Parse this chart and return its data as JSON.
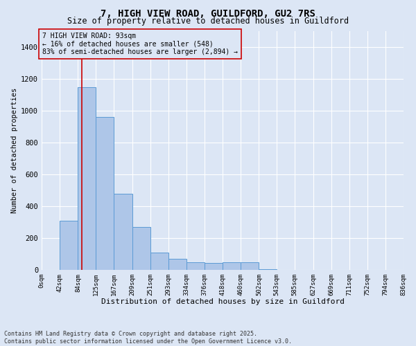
{
  "title_line1": "7, HIGH VIEW ROAD, GUILDFORD, GU2 7RS",
  "title_line2": "Size of property relative to detached houses in Guildford",
  "xlabel": "Distribution of detached houses by size in Guildford",
  "ylabel": "Number of detached properties",
  "footer_line1": "Contains HM Land Registry data © Crown copyright and database right 2025.",
  "footer_line2": "Contains public sector information licensed under the Open Government Licence v3.0.",
  "annotation_line1": "7 HIGH VIEW ROAD: 93sqm",
  "annotation_line2": "← 16% of detached houses are smaller (548)",
  "annotation_line3": "83% of semi-detached houses are larger (2,894) →",
  "bar_values": [
    0,
    310,
    1150,
    960,
    480,
    270,
    110,
    70,
    50,
    45,
    50,
    50,
    5,
    0,
    0,
    0,
    0,
    0,
    0,
    0
  ],
  "bin_edges": [
    0,
    42,
    84,
    125,
    167,
    209,
    251,
    293,
    334,
    376,
    418,
    460,
    502,
    543,
    585,
    627,
    669,
    711,
    752,
    794,
    836
  ],
  "x_tick_labels": [
    "0sqm",
    "42sqm",
    "84sqm",
    "125sqm",
    "167sqm",
    "209sqm",
    "251sqm",
    "293sqm",
    "334sqm",
    "376sqm",
    "418sqm",
    "460sqm",
    "502sqm",
    "543sqm",
    "585sqm",
    "627sqm",
    "669sqm",
    "711sqm",
    "752sqm",
    "794sqm",
    "836sqm"
  ],
  "property_size": 93,
  "ylim": [
    0,
    1500
  ],
  "yticks": [
    0,
    200,
    400,
    600,
    800,
    1000,
    1200,
    1400
  ],
  "bar_color": "#aec6e8",
  "bar_edge_color": "#5b9bd5",
  "line_color": "#cc0000",
  "background_color": "#dce6f5",
  "annotation_box_facecolor": "#dce6f5",
  "annotation_box_edgecolor": "#cc0000",
  "grid_color": "#ffffff",
  "title1_fontsize": 10,
  "title2_fontsize": 8.5,
  "xlabel_fontsize": 8,
  "ylabel_fontsize": 7.5,
  "tick_fontsize": 6.5,
  "ytick_fontsize": 7.5,
  "annotation_fontsize": 7,
  "footer_fontsize": 6
}
